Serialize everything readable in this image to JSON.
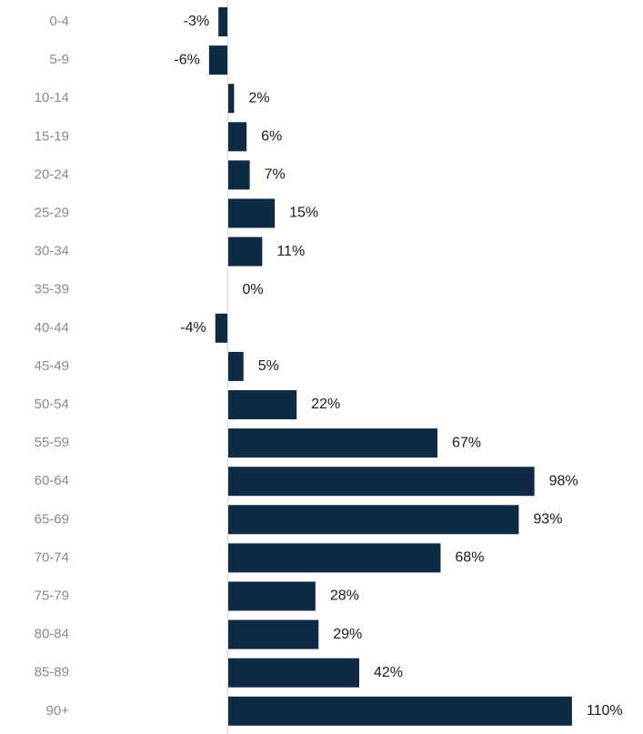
{
  "chart_data": {
    "type": "bar",
    "orientation": "horizontal",
    "title": "",
    "xlabel": "",
    "ylabel": "",
    "categories": [
      "0-4",
      "5-9",
      "10-14",
      "15-19",
      "20-24",
      "25-29",
      "30-34",
      "35-39",
      "40-44",
      "45-49",
      "50-54",
      "55-59",
      "60-64",
      "65-69",
      "70-74",
      "75-79",
      "80-84",
      "85-89",
      "90+"
    ],
    "values": [
      -3,
      -6,
      2,
      6,
      7,
      15,
      11,
      0,
      -4,
      5,
      22,
      67,
      98,
      93,
      68,
      28,
      29,
      42,
      110
    ],
    "data_labels": [
      "-3%",
      "-6%",
      "2%",
      "6%",
      "7%",
      "15%",
      "11%",
      "0%",
      "-4%",
      "5%",
      "22%",
      "67%",
      "98%",
      "93%",
      "68%",
      "28%",
      "29%",
      "42%",
      "110%"
    ],
    "value_unit": "%",
    "xlim": [
      -6,
      110
    ],
    "bar_color": "#0f2a45",
    "grid": false,
    "legend": "none"
  }
}
